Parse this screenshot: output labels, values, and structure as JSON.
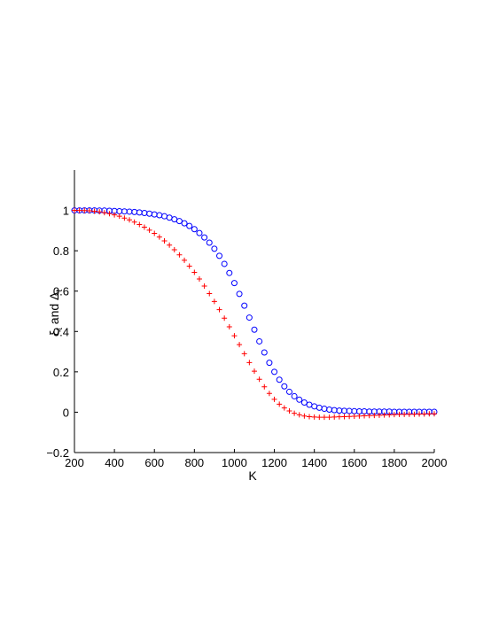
{
  "chart_data": {
    "type": "scatter",
    "xlabel": "K",
    "ylabel": "ξ",
    "ylabel_parts": {
      "xi": "ξ",
      "xi_sub": "t",
      "and": " and ",
      "delta": "Δ",
      "delta_sub": "t"
    },
    "xlim": [
      200,
      2000
    ],
    "ylim": [
      -0.2,
      1.2
    ],
    "x_ticks": [
      200,
      400,
      600,
      800,
      1000,
      1200,
      1400,
      1600,
      1800,
      2000
    ],
    "x_tick_labels": [
      "200",
      "400",
      "600",
      "800",
      "1000",
      "1200",
      "1400",
      "1600",
      "1800",
      "2000"
    ],
    "y_ticks": [
      -0.2,
      0,
      0.2,
      0.4,
      0.6,
      0.8,
      1
    ],
    "y_tick_labels": [
      "−0.2",
      "0",
      "0.2",
      "0.4",
      "0.6",
      "0.8",
      "1"
    ],
    "grid": false,
    "x": [
      200,
      225,
      250,
      275,
      300,
      325,
      350,
      375,
      400,
      425,
      450,
      475,
      500,
      525,
      550,
      575,
      600,
      625,
      650,
      675,
      700,
      725,
      750,
      775,
      800,
      825,
      850,
      875,
      900,
      925,
      950,
      975,
      1000,
      1025,
      1050,
      1075,
      1100,
      1125,
      1150,
      1175,
      1200,
      1225,
      1250,
      1275,
      1300,
      1325,
      1350,
      1375,
      1400,
      1425,
      1450,
      1475,
      1500,
      1525,
      1550,
      1575,
      1600,
      1625,
      1650,
      1675,
      1700,
      1725,
      1750,
      1775,
      1800,
      1825,
      1850,
      1875,
      1900,
      1925,
      1950,
      1975,
      2000
    ],
    "series": [
      {
        "marker": "circle",
        "color": "#0000ff",
        "values": [
          1.0,
          1.0,
          1.0,
          1.0,
          1.0,
          0.999,
          0.999,
          0.998,
          0.997,
          0.996,
          0.995,
          0.994,
          0.992,
          0.99,
          0.987,
          0.984,
          0.98,
          0.976,
          0.971,
          0.964,
          0.956,
          0.947,
          0.936,
          0.923,
          0.907,
          0.888,
          0.866,
          0.84,
          0.81,
          0.775,
          0.735,
          0.69,
          0.64,
          0.586,
          0.528,
          0.469,
          0.409,
          0.351,
          0.296,
          0.245,
          0.2,
          0.161,
          0.128,
          0.101,
          0.079,
          0.062,
          0.048,
          0.037,
          0.029,
          0.022,
          0.017,
          0.013,
          0.01,
          0.008,
          0.007,
          0.006,
          0.005,
          0.004,
          0.004,
          0.003,
          0.003,
          0.003,
          0.003,
          0.003,
          0.002,
          0.002,
          0.002,
          0.002,
          0.002,
          0.002,
          0.002,
          0.002,
          0.002
        ]
      },
      {
        "marker": "plus",
        "color": "#ff0000",
        "values": [
          1.0,
          1.0,
          0.999,
          0.998,
          0.996,
          0.993,
          0.989,
          0.984,
          0.978,
          0.971,
          0.962,
          0.953,
          0.942,
          0.93,
          0.917,
          0.902,
          0.886,
          0.868,
          0.849,
          0.828,
          0.805,
          0.78,
          0.753,
          0.724,
          0.693,
          0.66,
          0.625,
          0.588,
          0.549,
          0.508,
          0.466,
          0.423,
          0.379,
          0.335,
          0.29,
          0.246,
          0.203,
          0.163,
          0.126,
          0.093,
          0.064,
          0.04,
          0.021,
          0.006,
          -0.005,
          -0.013,
          -0.019,
          -0.022,
          -0.024,
          -0.025,
          -0.025,
          -0.025,
          -0.024,
          -0.023,
          -0.022,
          -0.021,
          -0.02,
          -0.019,
          -0.018,
          -0.017,
          -0.016,
          -0.015,
          -0.014,
          -0.013,
          -0.012,
          -0.011,
          -0.011,
          -0.01,
          -0.01,
          -0.009,
          -0.009,
          -0.008,
          -0.008
        ]
      }
    ]
  }
}
